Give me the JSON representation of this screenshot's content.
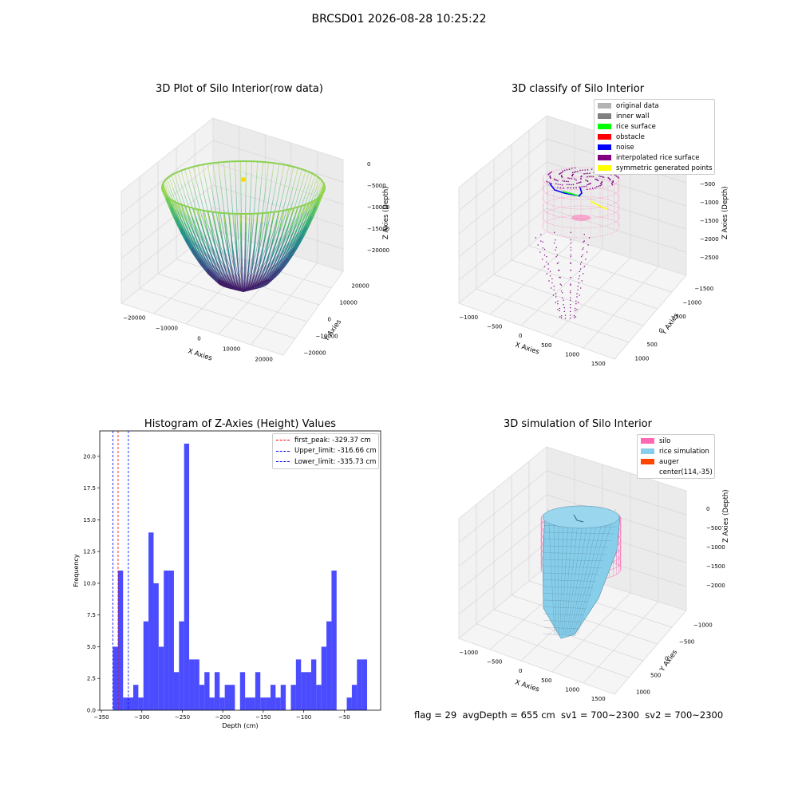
{
  "figure": {
    "suptitle": "BRCSD01 2026-08-28 10:25:22"
  },
  "panels": {
    "raw": {
      "title": "3D Plot of Silo Interior(row data)",
      "xlabel": "X Axies",
      "ylabel": "Y Axies",
      "zlabel": "Z Axies (Depth)",
      "xticks": [
        "−20000",
        "−10000",
        "0",
        "10000",
        "20000"
      ],
      "yticks": [
        "−20000",
        "−10000",
        "0",
        "10000",
        "20000"
      ],
      "zticks": [
        "0",
        "−5000",
        "−10000",
        "−15000",
        "−20000"
      ],
      "colormap": "viridis"
    },
    "classify": {
      "title": "3D classify of Silo Interior",
      "xlabel": "X Axies",
      "ylabel": "Y Axies",
      "zlabel": "Z Axies (Depth)",
      "xticks": [
        "−1000",
        "−500",
        "0",
        "500",
        "1000",
        "1500"
      ],
      "yticks": [
        "−1500",
        "−1000",
        "−500",
        "0",
        "500",
        "1000"
      ],
      "zticks": [
        "0",
        "−500",
        "−1000",
        "−1500",
        "−2000",
        "−2500"
      ],
      "legend": [
        {
          "label": "original data",
          "color": "#b3b3b3"
        },
        {
          "label": "inner wall",
          "color": "#808080"
        },
        {
          "label": "rice surface",
          "color": "#00ff00"
        },
        {
          "label": "obstacle",
          "color": "#ff0000"
        },
        {
          "label": "noise",
          "color": "#0000ff"
        },
        {
          "label": "interpolated rice surface",
          "color": "#800080"
        },
        {
          "label": "symmetric generated points",
          "color": "#ffff00"
        }
      ]
    },
    "simulation": {
      "title": "3D simulation of Silo Interior",
      "xlabel": "X Axies",
      "ylabel": "Y Axies",
      "zlabel": "Z Axies (Depth)",
      "xticks": [
        "−1000",
        "−500",
        "0",
        "500",
        "1000",
        "1500"
      ],
      "yticks": [
        "−1000",
        "−500",
        "0",
        "500",
        "1000"
      ],
      "zticks": [
        "0",
        "−500",
        "−1000",
        "−1500",
        "−2000"
      ],
      "legend": [
        {
          "label": "silo",
          "color": "#ff69b4"
        },
        {
          "label": "rice simulation",
          "color": "#87ceeb"
        },
        {
          "label": "auger",
          "color": "#ff4500"
        },
        {
          "label": "center(114,-35)",
          "color": "#ffffff"
        }
      ],
      "footer": "flag = 29  avgDepth = 655 cm  sv1 = 700~2300  sv2 = 700~2300"
    }
  },
  "chart_data": [
    {
      "type": "histogram",
      "title": "Histogram of Z-Axies (Height) Values",
      "xlabel": "Depth (cm)",
      "ylabel": "Frequency",
      "xlim": [
        -352,
        -5
      ],
      "ylim": [
        0,
        22
      ],
      "xtick_values": [
        -350,
        -300,
        -250,
        -200,
        -150,
        -100,
        -50
      ],
      "xtick_labels": [
        "−350",
        "−300",
        "−250",
        "−200",
        "−150",
        "−100",
        "−50"
      ],
      "ytick_values": [
        0,
        2.5,
        5,
        7.5,
        10,
        12.5,
        15,
        17.5,
        20
      ],
      "ytick_labels": [
        "0.0",
        "2.5",
        "5.0",
        "7.5",
        "10.0",
        "12.5",
        "15.0",
        "17.5",
        "20.0"
      ],
      "bar_color": "#0000ff",
      "bin_start": -335.73,
      "bin_width": 6.28,
      "counts": [
        5,
        11,
        1,
        1,
        2,
        1,
        7,
        14,
        10,
        5,
        11,
        11,
        3,
        7,
        21,
        4,
        4,
        2,
        3,
        1,
        3,
        1,
        2,
        2,
        0,
        3,
        1,
        1,
        3,
        1,
        1,
        2,
        1,
        2,
        0,
        2,
        4,
        3,
        3,
        4,
        2,
        5,
        7,
        11,
        0,
        0,
        1,
        2,
        4,
        4
      ],
      "vlines": [
        {
          "label": "first_peak: -329.37 cm",
          "x": -329.37,
          "color": "#ff0000"
        },
        {
          "label": "Upper_limit: -316.66 cm",
          "x": -316.66,
          "color": "#0000ff"
        },
        {
          "label": "Lower_limit: -335.73 cm",
          "x": -335.73,
          "color": "#0000ff"
        }
      ],
      "legend_position": "upper right"
    }
  ]
}
